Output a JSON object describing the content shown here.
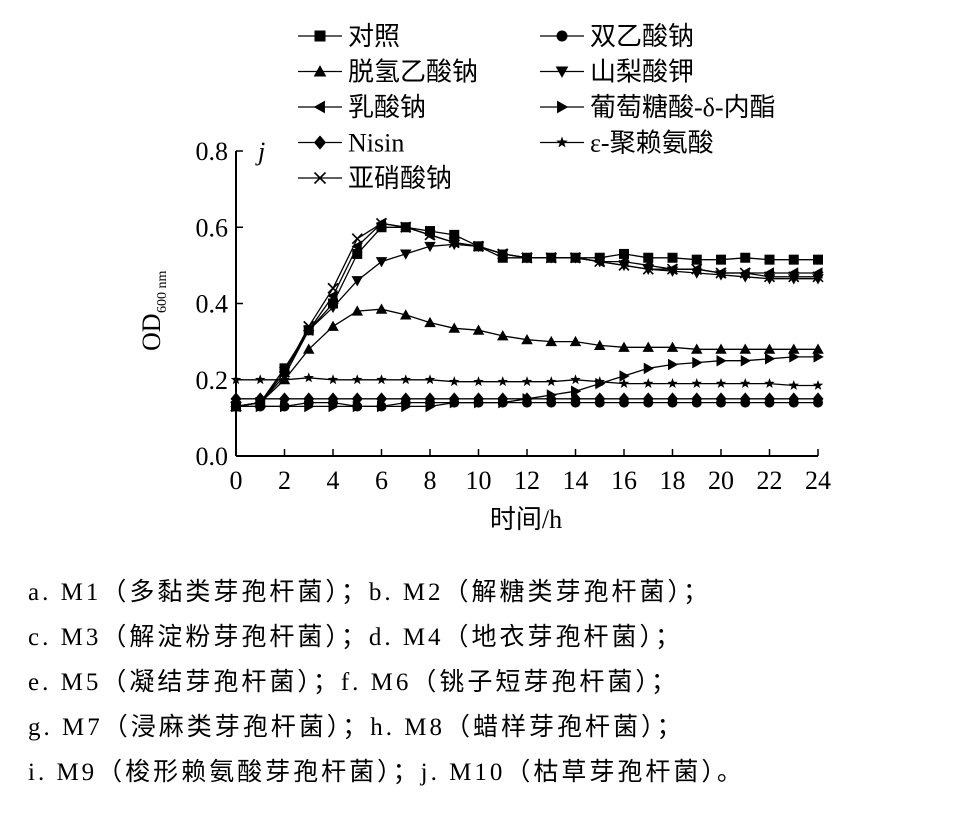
{
  "chart_data": {
    "type": "line",
    "panel_label": "j",
    "xlabel": "时间/h",
    "ylabel_main": "OD",
    "ylabel_sub": "600 nm",
    "xlim": [
      0,
      24
    ],
    "ylim": [
      0,
      0.8
    ],
    "xticks": [
      0,
      2,
      4,
      6,
      8,
      10,
      12,
      14,
      16,
      18,
      20,
      22,
      24
    ],
    "yticks": [
      0.0,
      0.2,
      0.4,
      0.6,
      0.8
    ],
    "ytick_labels": [
      "0.0",
      "0.2",
      "0.4",
      "0.6",
      "0.8"
    ],
    "grid": false,
    "legend_position": "top",
    "x": [
      0,
      1,
      2,
      3,
      4,
      5,
      6,
      7,
      8,
      9,
      10,
      11,
      12,
      13,
      14,
      15,
      16,
      17,
      18,
      19,
      20,
      21,
      22,
      23,
      24
    ],
    "series": [
      {
        "name": "对照",
        "marker": "square",
        "values": [
          0.13,
          0.14,
          0.23,
          0.33,
          0.4,
          0.53,
          0.6,
          0.6,
          0.59,
          0.58,
          0.55,
          0.52,
          0.52,
          0.52,
          0.52,
          0.52,
          0.53,
          0.52,
          0.52,
          0.515,
          0.515,
          0.52,
          0.515,
          0.515,
          0.515
        ]
      },
      {
        "name": "双乙酸钠",
        "marker": "circle",
        "values": [
          0.13,
          0.13,
          0.13,
          0.14,
          0.14,
          0.13,
          0.13,
          0.14,
          0.14,
          0.14,
          0.14,
          0.14,
          0.14,
          0.14,
          0.14,
          0.14,
          0.14,
          0.14,
          0.14,
          0.14,
          0.14,
          0.14,
          0.14,
          0.14,
          0.14
        ]
      },
      {
        "name": "脱氢乙酸钠",
        "marker": "triangle-up",
        "values": [
          0.13,
          0.14,
          0.2,
          0.28,
          0.34,
          0.38,
          0.385,
          0.37,
          0.35,
          0.335,
          0.33,
          0.315,
          0.305,
          0.3,
          0.3,
          0.29,
          0.285,
          0.285,
          0.285,
          0.28,
          0.28,
          0.28,
          0.28,
          0.28,
          0.28
        ]
      },
      {
        "name": "山梨酸钾",
        "marker": "triangle-down",
        "values": [
          0.13,
          0.14,
          0.21,
          0.33,
          0.39,
          0.46,
          0.51,
          0.53,
          0.55,
          0.555,
          0.55,
          0.53,
          0.52,
          0.52,
          0.52,
          0.51,
          0.5,
          0.49,
          0.485,
          0.48,
          0.475,
          0.47,
          0.465,
          0.465,
          0.465
        ]
      },
      {
        "name": "乳酸钠",
        "marker": "triangle-left",
        "values": [
          0.13,
          0.14,
          0.22,
          0.33,
          0.42,
          0.55,
          0.61,
          0.6,
          0.58,
          0.56,
          0.55,
          0.53,
          0.52,
          0.52,
          0.52,
          0.51,
          0.51,
          0.5,
          0.49,
          0.49,
          0.48,
          0.48,
          0.48,
          0.48,
          0.48
        ]
      },
      {
        "name": "葡萄糖酸-δ-内酯",
        "marker": "triangle-right",
        "values": [
          0.13,
          0.13,
          0.13,
          0.13,
          0.13,
          0.13,
          0.13,
          0.13,
          0.13,
          0.14,
          0.14,
          0.14,
          0.15,
          0.16,
          0.17,
          0.19,
          0.21,
          0.23,
          0.24,
          0.245,
          0.25,
          0.25,
          0.255,
          0.26,
          0.26
        ]
      },
      {
        "name": "Nisin",
        "marker": "diamond",
        "values": [
          0.15,
          0.15,
          0.15,
          0.15,
          0.15,
          0.15,
          0.15,
          0.15,
          0.15,
          0.15,
          0.15,
          0.15,
          0.15,
          0.15,
          0.15,
          0.15,
          0.15,
          0.15,
          0.15,
          0.15,
          0.15,
          0.15,
          0.15,
          0.15,
          0.15
        ]
      },
      {
        "name": "ε-聚赖氨酸",
        "marker": "star",
        "values": [
          0.2,
          0.2,
          0.2,
          0.205,
          0.2,
          0.2,
          0.2,
          0.2,
          0.2,
          0.195,
          0.195,
          0.195,
          0.195,
          0.195,
          0.2,
          0.195,
          0.19,
          0.19,
          0.19,
          0.19,
          0.19,
          0.19,
          0.19,
          0.185,
          0.185
        ]
      },
      {
        "name": "亚硝酸钠",
        "marker": "x",
        "values": [
          0.13,
          0.14,
          0.22,
          0.34,
          0.44,
          0.57,
          0.61,
          0.6,
          0.58,
          0.56,
          0.55,
          0.53,
          0.52,
          0.52,
          0.52,
          0.51,
          0.5,
          0.49,
          0.49,
          0.49,
          0.48,
          0.48,
          0.47,
          0.47,
          0.47
        ]
      }
    ]
  },
  "caption": [
    "a. M1（多黏类芽孢杆菌）；b. M2（解糖类芽孢杆菌）；",
    "c. M3（解淀粉芽孢杆菌）；d. M4（地衣芽孢杆菌）；",
    "e. M5（凝结芽孢杆菌）；f. M6（铫子短芽孢杆菌）；",
    "g. M7（浸麻类芽孢杆菌）；h. M8（蜡样芽孢杆菌）；",
    "i. M9（梭形赖氨酸芽孢杆菌）；j. M10（枯草芽孢杆菌）。"
  ]
}
